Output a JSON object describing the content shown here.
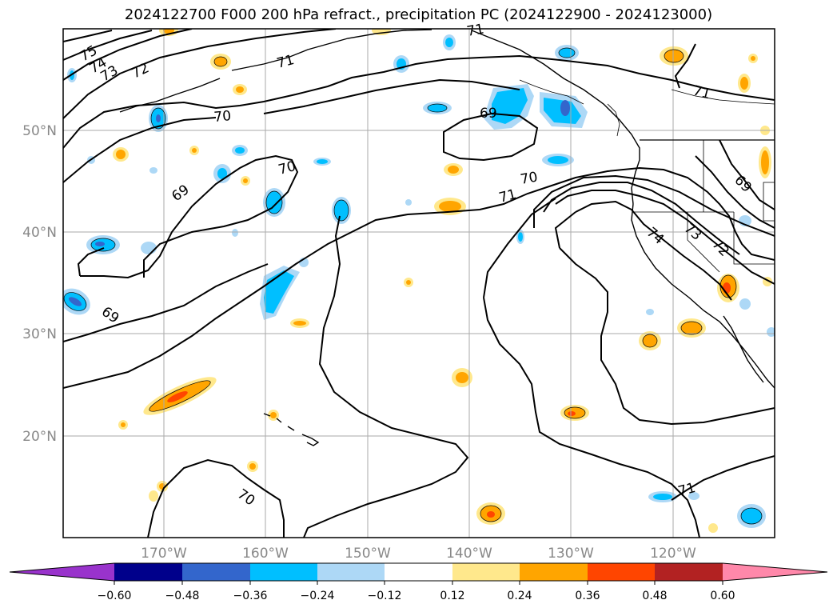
{
  "title": "2024122700 F000 200 hPa refract., precipitation PC (2024122900 - 2024123000)",
  "map": {
    "lat_labels": [
      "50°N",
      "40°N",
      "30°N",
      "20°N"
    ],
    "lon_labels": [
      "170°W",
      "160°W",
      "150°W",
      "140°W",
      "130°W",
      "120°W"
    ],
    "contour_labels": [
      "75",
      "74",
      "73",
      "72",
      "71",
      "70",
      "70",
      "69",
      "69",
      "69",
      "70",
      "71",
      "71",
      "74",
      "73",
      "72",
      "69",
      "71",
      "70",
      "71"
    ]
  },
  "colorbar": {
    "ticks": [
      "−0.60",
      "−0.48",
      "−0.36",
      "−0.24",
      "−0.12",
      "0.12",
      "0.24",
      "0.36",
      "0.48",
      "0.60"
    ],
    "colors": [
      "#9933cc",
      "#00008b",
      "#3366cc",
      "#00bfff",
      "#add8f6",
      "#ffffff",
      "#ffe88c",
      "#ffa500",
      "#ff4500",
      "#b22222",
      "#ff88aa"
    ]
  }
}
